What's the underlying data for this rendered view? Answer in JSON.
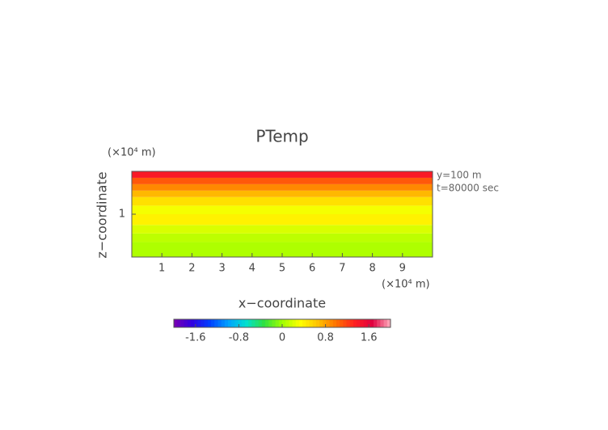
{
  "chart_data": {
    "type": "contour",
    "title": "PTemp",
    "x_label": "x−coordinate",
    "y_label": "z−coordinate",
    "x_unit": "(×10⁴ m)",
    "y_unit": "(×10⁴ m)",
    "annotations": [
      "y=100 m",
      "t=80000 sec"
    ],
    "xlim": [
      0,
      10
    ],
    "ylim": [
      0,
      2
    ],
    "xticks": [
      1,
      2,
      3,
      4,
      5,
      6,
      7,
      8,
      9
    ],
    "yticks": [
      1
    ],
    "zbins": [
      0,
      0.35,
      0.55,
      0.75,
      1.0,
      1.2,
      1.4,
      1.55,
      1.7,
      1.85,
      2.0
    ],
    "values": [
      0.05,
      0.1,
      0.2,
      0.4,
      0.3,
      0.5,
      0.7,
      0.9,
      1.1,
      1.4
    ],
    "clim": [
      -2,
      2
    ],
    "cticks": [
      -1.6,
      -0.8,
      0,
      0.8,
      1.6
    ],
    "colormap": [
      "#7a00b0",
      "#3000e0",
      "#0040ff",
      "#00a0ff",
      "#00e0d0",
      "#30e040",
      "#a0ff00",
      "#ffff00",
      "#ffc000",
      "#ff7000",
      "#ff2020",
      "#e00040",
      "#ffb0c0"
    ]
  }
}
